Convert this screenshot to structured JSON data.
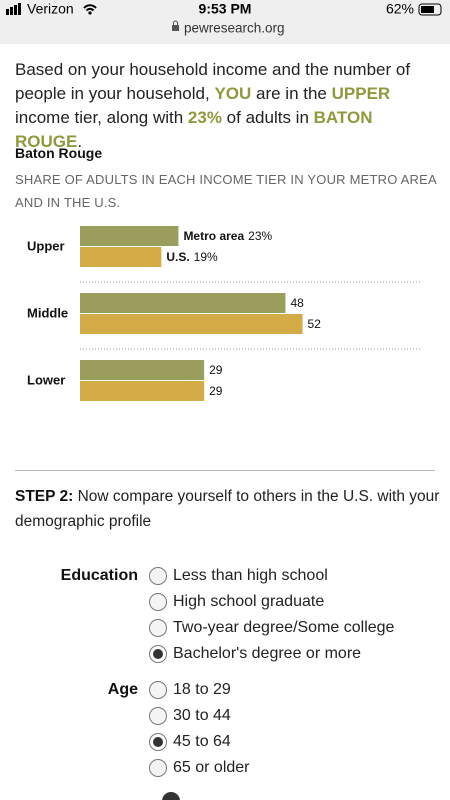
{
  "status_bar": {
    "carrier": "Verizon",
    "time": "9:53 PM",
    "battery": "62%",
    "url": "pewresearch.org"
  },
  "intro": {
    "parts": [
      "Based on your household income and the number of people in your household, ",
      "YOU",
      " are in the ",
      "UPPER",
      " income tier, along with ",
      "23%",
      " of adults in ",
      "BATON ROUGE",
      "."
    ]
  },
  "chart_data": {
    "type": "bar",
    "orientation": "horizontal",
    "title": "Baton Rouge",
    "subtitle": "SHARE OF ADULTS IN EACH INCOME TIER IN YOUR METRO AREA AND IN THE U.S.",
    "categories": [
      "Upper",
      "Middle",
      "Lower"
    ],
    "series": [
      {
        "name": "Metro area",
        "color": "#9a9d5b",
        "values": [
          23,
          48,
          29
        ],
        "value_labels": [
          "23%",
          "48",
          "29"
        ]
      },
      {
        "name": "U.S.",
        "color": "#d4ac47",
        "values": [
          19,
          52,
          29
        ],
        "value_labels": [
          "19%",
          "52",
          "29"
        ]
      }
    ]
  },
  "step2": {
    "step": "STEP 2:",
    "text": "Now compare yourself to others in the U.S. with your demographic profile"
  },
  "form": {
    "groups": [
      {
        "label": "Education",
        "options": [
          "Less than high school",
          "High school graduate",
          "Two-year degree/Some college",
          "Bachelor's degree or more"
        ],
        "selected": 3
      },
      {
        "label": "Age",
        "options": [
          "18 to 29",
          "30 to 44",
          "45 to 64",
          "65 or older"
        ],
        "selected": 2
      }
    ]
  }
}
